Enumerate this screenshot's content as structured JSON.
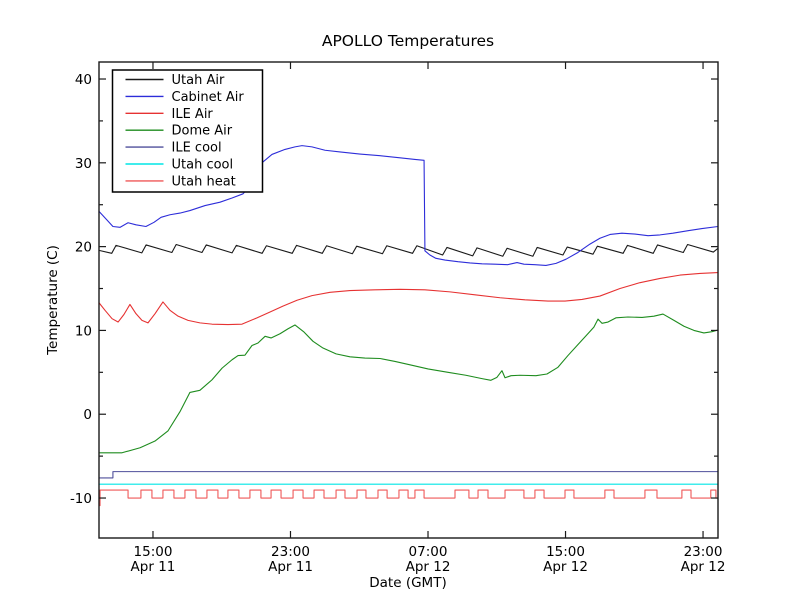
{
  "chart_data": {
    "type": "line",
    "title": "APOLLO Temperatures",
    "xlabel": "Date (GMT)",
    "ylabel": "Temperature (C)",
    "x_unit": "hours_since_Apr11_0000_GMT",
    "xlim": [
      11.86,
      47.87
    ],
    "ylim": [
      -14.77,
      42.03
    ],
    "grid": false,
    "legend_position": "upper left",
    "x_ticks": [
      {
        "t": 15,
        "time": "15:00",
        "date": "Apr 11"
      },
      {
        "t": 23,
        "time": "23:00",
        "date": "Apr 11"
      },
      {
        "t": 31,
        "time": "07:00",
        "date": "Apr 12"
      },
      {
        "t": 39,
        "time": "15:00",
        "date": "Apr 12"
      },
      {
        "t": 47,
        "time": "23:00",
        "date": "Apr 12"
      }
    ],
    "y_ticks": [
      {
        "v": 40,
        "label": "40"
      },
      {
        "v": 30,
        "label": "30"
      },
      {
        "v": 20,
        "label": "20"
      },
      {
        "v": 10,
        "label": "10"
      },
      {
        "v": 0,
        "label": "0"
      },
      {
        "v": -10,
        "label": "-10"
      }
    ],
    "y_minor_ticks": [
      35,
      25,
      15,
      5,
      -5
    ],
    "series": [
      {
        "name": "Utah Air",
        "color": "#1a1a1a",
        "points": [
          [
            11.86,
            19.55
          ],
          [
            12.6,
            19.2
          ],
          [
            12.85,
            20.15
          ],
          [
            14.35,
            19.25
          ],
          [
            14.6,
            20.2
          ],
          [
            16.1,
            19.3
          ],
          [
            16.35,
            20.25
          ],
          [
            17.85,
            19.3
          ],
          [
            18.1,
            20.2
          ],
          [
            19.6,
            19.25
          ],
          [
            19.85,
            20.15
          ],
          [
            21.35,
            19.2
          ],
          [
            21.6,
            20.1
          ],
          [
            23.1,
            19.2
          ],
          [
            23.35,
            20.15
          ],
          [
            24.85,
            19.2
          ],
          [
            25.1,
            20.1
          ],
          [
            26.6,
            19.15
          ],
          [
            26.85,
            20.05
          ],
          [
            28.35,
            19.15
          ],
          [
            28.6,
            20.1
          ],
          [
            30.1,
            19.2
          ],
          [
            30.35,
            20.1
          ],
          [
            31.85,
            19.0
          ],
          [
            32.1,
            19.9
          ],
          [
            33.6,
            18.9
          ],
          [
            33.85,
            19.85
          ],
          [
            35.35,
            18.85
          ],
          [
            35.6,
            19.8
          ],
          [
            37.1,
            18.85
          ],
          [
            37.35,
            19.9
          ],
          [
            38.85,
            19.0
          ],
          [
            39.1,
            19.95
          ],
          [
            40.6,
            19.1
          ],
          [
            40.85,
            20.05
          ],
          [
            42.35,
            19.2
          ],
          [
            42.6,
            20.15
          ],
          [
            44.1,
            19.2
          ],
          [
            44.35,
            20.2
          ],
          [
            45.85,
            19.3
          ],
          [
            46.1,
            20.25
          ],
          [
            47.6,
            19.35
          ],
          [
            47.87,
            19.8
          ]
        ]
      },
      {
        "name": "Cabinet Air",
        "color": "#2d2dd9",
        "points": [
          [
            11.86,
            24.2
          ],
          [
            12.27,
            23.3
          ],
          [
            12.67,
            22.4
          ],
          [
            13.08,
            22.3
          ],
          [
            13.55,
            22.85
          ],
          [
            14.01,
            22.6
          ],
          [
            14.59,
            22.4
          ],
          [
            15.06,
            22.9
          ],
          [
            15.47,
            23.5
          ],
          [
            15.99,
            23.8
          ],
          [
            16.57,
            24.0
          ],
          [
            17.15,
            24.3
          ],
          [
            18.03,
            24.9
          ],
          [
            18.9,
            25.3
          ],
          [
            19.6,
            25.8
          ],
          [
            20.24,
            26.3
          ],
          [
            20.76,
            27.5
          ],
          [
            21.34,
            30.0
          ],
          [
            21.92,
            31.0
          ],
          [
            22.68,
            31.6
          ],
          [
            23.26,
            31.9
          ],
          [
            23.67,
            32.05
          ],
          [
            24.25,
            31.9
          ],
          [
            25.01,
            31.5
          ],
          [
            25.88,
            31.3
          ],
          [
            27.04,
            31.05
          ],
          [
            28.21,
            30.85
          ],
          [
            29.37,
            30.6
          ],
          [
            30.24,
            30.4
          ],
          [
            30.77,
            30.3
          ],
          [
            30.82,
            19.5
          ],
          [
            31.11,
            19.0
          ],
          [
            31.46,
            18.6
          ],
          [
            31.99,
            18.4
          ],
          [
            32.74,
            18.2
          ],
          [
            33.44,
            18.05
          ],
          [
            34.14,
            17.95
          ],
          [
            34.9,
            17.9
          ],
          [
            35.65,
            17.85
          ],
          [
            36.18,
            18.1
          ],
          [
            36.58,
            17.9
          ],
          [
            37.22,
            17.85
          ],
          [
            37.86,
            17.75
          ],
          [
            38.45,
            18.0
          ],
          [
            39.03,
            18.5
          ],
          [
            39.72,
            19.3
          ],
          [
            40.42,
            20.3
          ],
          [
            41.0,
            21.0
          ],
          [
            41.59,
            21.45
          ],
          [
            42.28,
            21.6
          ],
          [
            43.04,
            21.5
          ],
          [
            43.8,
            21.3
          ],
          [
            44.5,
            21.4
          ],
          [
            45.25,
            21.6
          ],
          [
            46.13,
            21.9
          ],
          [
            46.94,
            22.15
          ],
          [
            47.87,
            22.4
          ]
        ]
      },
      {
        "name": "ILE Air",
        "color": "#e63232",
        "points": [
          [
            11.86,
            13.3
          ],
          [
            12.21,
            12.4
          ],
          [
            12.62,
            11.4
          ],
          [
            12.97,
            11.0
          ],
          [
            13.31,
            11.9
          ],
          [
            13.66,
            13.1
          ],
          [
            14.01,
            12.0
          ],
          [
            14.36,
            11.2
          ],
          [
            14.71,
            10.9
          ],
          [
            15.12,
            12.0
          ],
          [
            15.58,
            13.4
          ],
          [
            15.99,
            12.4
          ],
          [
            16.46,
            11.7
          ],
          [
            17.04,
            11.2
          ],
          [
            17.73,
            10.9
          ],
          [
            18.43,
            10.75
          ],
          [
            19.36,
            10.7
          ],
          [
            20.18,
            10.75
          ],
          [
            21.05,
            11.5
          ],
          [
            21.81,
            12.2
          ],
          [
            22.56,
            12.9
          ],
          [
            23.38,
            13.6
          ],
          [
            24.25,
            14.15
          ],
          [
            25.3,
            14.55
          ],
          [
            26.46,
            14.75
          ],
          [
            27.92,
            14.85
          ],
          [
            29.37,
            14.9
          ],
          [
            30.82,
            14.85
          ],
          [
            32.28,
            14.6
          ],
          [
            33.73,
            14.25
          ],
          [
            35.19,
            13.9
          ],
          [
            36.64,
            13.65
          ],
          [
            37.98,
            13.5
          ],
          [
            38.97,
            13.5
          ],
          [
            39.96,
            13.7
          ],
          [
            41.0,
            14.1
          ],
          [
            42.17,
            15.0
          ],
          [
            43.33,
            15.7
          ],
          [
            44.5,
            16.2
          ],
          [
            45.66,
            16.6
          ],
          [
            46.82,
            16.8
          ],
          [
            47.87,
            16.9
          ]
        ]
      },
      {
        "name": "Dome Air",
        "color": "#1e8c1e",
        "points": [
          [
            11.86,
            -4.6
          ],
          [
            13.2,
            -4.6
          ],
          [
            14.25,
            -4.0
          ],
          [
            15.12,
            -3.2
          ],
          [
            15.87,
            -2.0
          ],
          [
            16.57,
            0.3
          ],
          [
            17.15,
            2.6
          ],
          [
            17.73,
            2.85
          ],
          [
            18.43,
            4.1
          ],
          [
            19.02,
            5.5
          ],
          [
            19.6,
            6.5
          ],
          [
            19.95,
            7.0
          ],
          [
            20.35,
            7.05
          ],
          [
            20.76,
            8.2
          ],
          [
            21.11,
            8.5
          ],
          [
            21.52,
            9.3
          ],
          [
            21.87,
            9.1
          ],
          [
            22.39,
            9.6
          ],
          [
            22.86,
            10.2
          ],
          [
            23.26,
            10.65
          ],
          [
            23.79,
            9.8
          ],
          [
            24.31,
            8.7
          ],
          [
            24.89,
            7.9
          ],
          [
            25.65,
            7.2
          ],
          [
            26.46,
            6.85
          ],
          [
            27.33,
            6.7
          ],
          [
            28.21,
            6.65
          ],
          [
            29.08,
            6.3
          ],
          [
            29.95,
            5.9
          ],
          [
            31.0,
            5.4
          ],
          [
            32.16,
            5.0
          ],
          [
            33.2,
            4.65
          ],
          [
            34.14,
            4.25
          ],
          [
            34.66,
            4.05
          ],
          [
            35.01,
            4.4
          ],
          [
            35.3,
            5.2
          ],
          [
            35.48,
            4.35
          ],
          [
            35.83,
            4.6
          ],
          [
            36.35,
            4.65
          ],
          [
            37.28,
            4.6
          ],
          [
            37.92,
            4.8
          ],
          [
            38.56,
            5.6
          ],
          [
            39.14,
            7.0
          ],
          [
            39.72,
            8.3
          ],
          [
            40.3,
            9.6
          ],
          [
            40.65,
            10.4
          ],
          [
            40.89,
            11.35
          ],
          [
            41.12,
            10.85
          ],
          [
            41.47,
            11.0
          ],
          [
            41.93,
            11.5
          ],
          [
            42.63,
            11.6
          ],
          [
            43.45,
            11.55
          ],
          [
            44.14,
            11.7
          ],
          [
            44.67,
            11.95
          ],
          [
            45.31,
            11.2
          ],
          [
            45.89,
            10.5
          ],
          [
            46.47,
            10.0
          ],
          [
            47.05,
            9.7
          ],
          [
            47.52,
            9.85
          ],
          [
            47.87,
            10.05
          ]
        ]
      },
      {
        "name": "ILE cool",
        "color": "#4f4f9b",
        "points": [
          [
            11.86,
            -7.6
          ],
          [
            12.67,
            -7.6
          ],
          [
            12.67,
            -6.85
          ],
          [
            47.87,
            -6.85
          ]
        ]
      },
      {
        "name": "Utah cool",
        "color": "#00e5e5",
        "points": [
          [
            11.86,
            -8.35
          ],
          [
            47.87,
            -8.35
          ]
        ]
      },
      {
        "name": "Utah heat",
        "color": "#ef5858",
        "wave": {
          "start_t": 11.86,
          "start_level": -10.9,
          "low": -10.0,
          "high": -9.05,
          "pulses": [
            [
              11.92,
              13.55
            ],
            [
              14.3,
              14.94
            ],
            [
              15.58,
              16.22
            ],
            [
              16.86,
              17.5
            ],
            [
              18.14,
              18.78
            ],
            [
              19.36,
              20.0
            ],
            [
              20.64,
              21.28
            ],
            [
              21.87,
              22.45
            ],
            [
              23.15,
              23.73
            ],
            [
              24.37,
              24.95
            ],
            [
              25.65,
              26.17
            ],
            [
              26.87,
              27.39
            ],
            [
              28.09,
              28.62
            ],
            [
              29.31,
              29.84
            ],
            [
              30.24,
              30.77
            ],
            [
              32.57,
              33.38
            ],
            [
              33.91,
              34.49
            ],
            [
              35.48,
              36.58
            ],
            [
              37.22,
              37.75
            ],
            [
              38.97,
              39.49
            ],
            [
              41.29,
              41.82
            ],
            [
              43.62,
              44.32
            ],
            [
              45.77,
              46.3
            ],
            [
              47.45,
              47.75
            ]
          ]
        }
      }
    ]
  }
}
